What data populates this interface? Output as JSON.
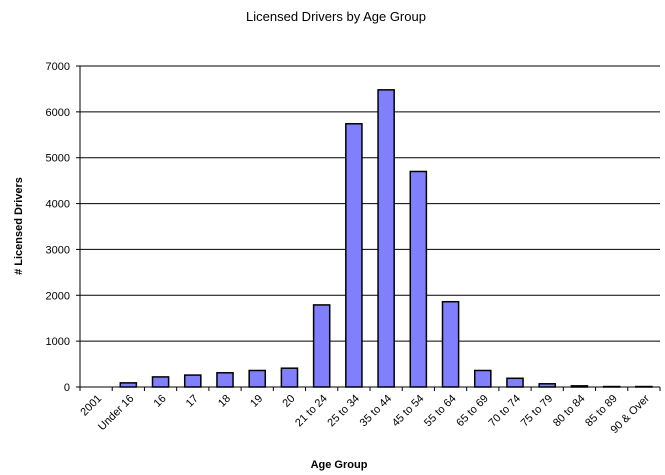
{
  "chart_data": {
    "type": "bar",
    "title": "Licensed Drivers by Age Group",
    "xlabel": "Age Group",
    "ylabel": "# Licensed Drivers",
    "ylim": [
      0,
      7000
    ],
    "yticks": [
      0,
      1000,
      2000,
      3000,
      4000,
      5000,
      6000,
      7000
    ],
    "grid": true,
    "legend": "none",
    "bar_color": "#8080ff",
    "categories": [
      "2001",
      "Under 16",
      "16",
      "17",
      "18",
      "19",
      "20",
      "21 to 24",
      "25 to 34",
      "35 to 44",
      "45 to 54",
      "55 to 64",
      "65 to 69",
      "70 to 74",
      "75 to 79",
      "80 to 84",
      "85 to 89",
      "90 & Over"
    ],
    "values": [
      0,
      90,
      220,
      260,
      310,
      360,
      410,
      1790,
      5740,
      6480,
      4700,
      1860,
      360,
      190,
      70,
      25,
      10,
      10
    ]
  }
}
